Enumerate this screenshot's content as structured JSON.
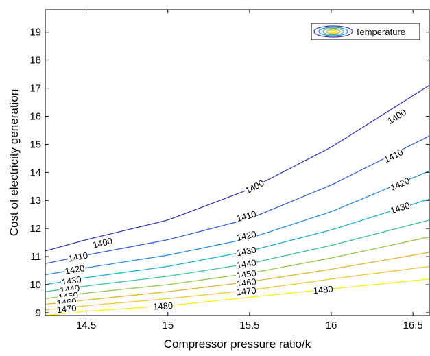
{
  "chart_data": {
    "type": "contour",
    "title": "",
    "xlabel": "Compressor pressure ratio/k",
    "ylabel": "Cost of electricity generation",
    "xlim": [
      14.25,
      16.6
    ],
    "ylim": [
      8.9,
      19.8
    ],
    "xticks": [
      14.5,
      15,
      15.5,
      16,
      16.5
    ],
    "xtick_labels": [
      "14.5",
      "15",
      "15.5",
      "16",
      "16.5"
    ],
    "yticks": [
      9,
      10,
      11,
      12,
      13,
      14,
      15,
      16,
      17,
      18,
      19
    ],
    "ytick_labels": [
      "9",
      "10",
      "11",
      "12",
      "13",
      "14",
      "15",
      "16",
      "17",
      "18",
      "19"
    ],
    "grid": false,
    "legend": {
      "entries": [
        "Temperature"
      ],
      "position": "top-right"
    },
    "colormap": "parula",
    "series": [
      {
        "level": 1400,
        "label": "1400",
        "color": "#3b3cb3",
        "x": [
          14.25,
          14.5,
          15.0,
          15.5,
          16.0,
          16.6
        ],
        "y": [
          11.2,
          11.6,
          12.3,
          13.4,
          14.9,
          17.1
        ]
      },
      {
        "level": 1410,
        "label": "1410",
        "color": "#3a5fd9",
        "x": [
          14.25,
          14.5,
          15.0,
          15.5,
          16.0,
          16.6
        ],
        "y": [
          10.75,
          11.05,
          11.6,
          12.35,
          13.55,
          15.3
        ]
      },
      {
        "level": 1420,
        "label": "1420",
        "color": "#2b8ce3",
        "x": [
          14.25,
          14.5,
          15.0,
          15.5,
          16.0,
          16.6
        ],
        "y": [
          10.35,
          10.6,
          11.05,
          11.65,
          12.6,
          14.05
        ]
      },
      {
        "level": 1430,
        "label": "1430",
        "color": "#20b0cf",
        "x": [
          14.25,
          14.5,
          15.0,
          15.5,
          16.0,
          16.6
        ],
        "y": [
          10.0,
          10.25,
          10.65,
          11.2,
          11.95,
          13.05
        ]
      },
      {
        "level": 1440,
        "label": "1440",
        "color": "#3ec29b",
        "x": [
          14.25,
          14.5,
          15.0,
          15.5,
          16.0,
          16.6
        ],
        "y": [
          9.75,
          9.95,
          10.3,
          10.75,
          11.4,
          12.3
        ]
      },
      {
        "level": 1450,
        "label": "1450",
        "color": "#99c548",
        "x": [
          14.25,
          14.5,
          15.0,
          15.5,
          16.0,
          16.6
        ],
        "y": [
          9.5,
          9.7,
          10.0,
          10.4,
          10.95,
          11.7
        ]
      },
      {
        "level": 1460,
        "label": "1460",
        "color": "#d9b832",
        "x": [
          14.25,
          14.5,
          15.0,
          15.5,
          16.0,
          16.6
        ],
        "y": [
          9.3,
          9.45,
          9.75,
          10.1,
          10.55,
          11.15
        ]
      },
      {
        "level": 1470,
        "label": "1470",
        "color": "#f1c731",
        "x": [
          14.25,
          14.5,
          15.0,
          15.5,
          16.0,
          16.6
        ],
        "y": [
          9.1,
          9.25,
          9.5,
          9.8,
          10.2,
          10.65
        ]
      },
      {
        "level": 1480,
        "label": "1480",
        "color": "#f9f00f",
        "x": [
          14.25,
          14.5,
          15.0,
          15.5,
          16.0,
          16.6
        ],
        "y": [
          8.9,
          9.05,
          9.25,
          9.55,
          9.85,
          10.2
        ]
      }
    ],
    "contour_labels": [
      {
        "text": "1400",
        "x": 16.4,
        "y": 16.0
      },
      {
        "text": "1410",
        "x": 16.38,
        "y": 14.6
      },
      {
        "text": "1420",
        "x": 16.42,
        "y": 13.6
      },
      {
        "text": "1430",
        "x": 16.42,
        "y": 12.75
      },
      {
        "text": "1400",
        "x": 15.53,
        "y": 13.5
      },
      {
        "text": "1410",
        "x": 15.48,
        "y": 12.45
      },
      {
        "text": "1420",
        "x": 15.48,
        "y": 11.75
      },
      {
        "text": "1430",
        "x": 15.48,
        "y": 11.2
      },
      {
        "text": "1440",
        "x": 15.48,
        "y": 10.75
      },
      {
        "text": "1450",
        "x": 15.48,
        "y": 10.38
      },
      {
        "text": "1460",
        "x": 15.48,
        "y": 10.08
      },
      {
        "text": "1470",
        "x": 15.48,
        "y": 9.78
      },
      {
        "text": "1480",
        "x": 15.95,
        "y": 9.83
      },
      {
        "text": "1480",
        "x": 14.97,
        "y": 9.25
      },
      {
        "text": "1400",
        "x": 14.6,
        "y": 11.5
      },
      {
        "text": "1410",
        "x": 14.45,
        "y": 11.0
      },
      {
        "text": "1420",
        "x": 14.43,
        "y": 10.55
      },
      {
        "text": "1430",
        "x": 14.41,
        "y": 10.15
      },
      {
        "text": "1440",
        "x": 14.4,
        "y": 9.85
      },
      {
        "text": "1450",
        "x": 14.39,
        "y": 9.6
      },
      {
        "text": "1460",
        "x": 14.38,
        "y": 9.38
      },
      {
        "text": "1470",
        "x": 14.38,
        "y": 9.15
      }
    ]
  }
}
